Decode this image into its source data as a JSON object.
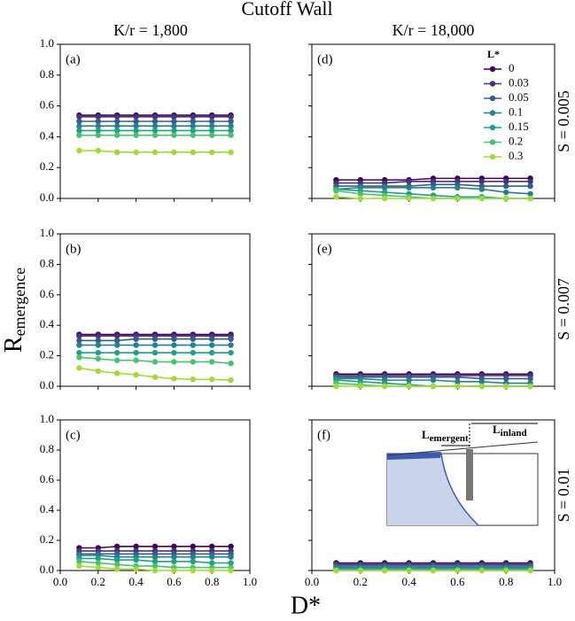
{
  "figure": {
    "title": "Cutoff Wall",
    "column_titles": [
      "K/r = 1,800",
      "K/r = 18,000"
    ],
    "row_labels": [
      "S = 0.005",
      "S = 0.007",
      "S = 0.01"
    ],
    "ylabel": {
      "main": "R",
      "sub": "emergence"
    },
    "xlabel": "D*",
    "legend_title": "L*",
    "inset": {
      "left": {
        "main": "L",
        "sub": "emergent"
      },
      "right": {
        "main": "L",
        "sub": "inland"
      }
    }
  },
  "chart_data": [
    {
      "type": "line",
      "title": "(a)",
      "x": [
        0.1,
        0.2,
        0.3,
        0.4,
        0.5,
        0.6,
        0.7,
        0.8,
        0.9
      ],
      "xlim": [
        0,
        1
      ],
      "ylim": [
        0,
        1
      ],
      "xticks": [
        {
          "value": 0,
          "label": "0.0"
        },
        {
          "value": 0.2,
          "label": "0.2"
        },
        {
          "value": 0.4,
          "label": "0.4"
        },
        {
          "value": 0.6,
          "label": "0.6"
        },
        {
          "value": 0.8,
          "label": "0.8"
        },
        {
          "value": 1,
          "label": "1.0"
        }
      ],
      "yticks": [
        {
          "value": 0,
          "label": "0.0"
        },
        {
          "value": 0.2,
          "label": "0.2"
        },
        {
          "value": 0.4,
          "label": "0.4"
        },
        {
          "value": 0.6,
          "label": "0.6"
        },
        {
          "value": 0.8,
          "label": "0.8"
        },
        {
          "value": 1,
          "label": "1.0"
        }
      ],
      "xticklabels": false,
      "yticklabels": true,
      "series": [
        {
          "name": "0",
          "color": "#440154",
          "values": [
            0.54,
            0.54,
            0.54,
            0.54,
            0.54,
            0.54,
            0.54,
            0.54,
            0.54
          ]
        },
        {
          "name": "0.03",
          "color": "#46327e",
          "values": [
            0.53,
            0.53,
            0.53,
            0.53,
            0.53,
            0.53,
            0.53,
            0.53,
            0.53
          ]
        },
        {
          "name": "0.05",
          "color": "#365c8d",
          "values": [
            0.5,
            0.5,
            0.5,
            0.5,
            0.5,
            0.5,
            0.5,
            0.5,
            0.5
          ]
        },
        {
          "name": "0.1",
          "color": "#277f8e",
          "values": [
            0.47,
            0.47,
            0.47,
            0.47,
            0.47,
            0.47,
            0.47,
            0.47,
            0.47
          ]
        },
        {
          "name": "0.15",
          "color": "#1fa187",
          "values": [
            0.44,
            0.44,
            0.44,
            0.44,
            0.44,
            0.44,
            0.44,
            0.44,
            0.44
          ]
        },
        {
          "name": "0.2",
          "color": "#4ac16d",
          "values": [
            0.41,
            0.41,
            0.41,
            0.41,
            0.41,
            0.41,
            0.41,
            0.41,
            0.41
          ]
        },
        {
          "name": "0.3",
          "color": "#a0da39",
          "values": [
            0.31,
            0.31,
            0.3,
            0.3,
            0.3,
            0.3,
            0.3,
            0.3,
            0.3
          ]
        }
      ]
    },
    {
      "type": "line",
      "title": "(d)",
      "x": [
        0.1,
        0.2,
        0.3,
        0.4,
        0.5,
        0.6,
        0.7,
        0.8,
        0.9
      ],
      "xlim": [
        0,
        1
      ],
      "ylim": [
        0,
        1
      ],
      "xticks": [
        0,
        0.2,
        0.4,
        0.6,
        0.8,
        1
      ],
      "yticks": [
        0,
        0.2,
        0.4,
        0.6,
        0.8,
        1
      ],
      "xticklabels": false,
      "yticklabels": false,
      "legend": "upper right",
      "series": [
        {
          "name": "0",
          "color": "#440154",
          "values": [
            0.12,
            0.12,
            0.12,
            0.12,
            0.13,
            0.13,
            0.13,
            0.13,
            0.13
          ]
        },
        {
          "name": "0.03",
          "color": "#46327e",
          "values": [
            0.1,
            0.1,
            0.1,
            0.11,
            0.11,
            0.11,
            0.11,
            0.11,
            0.11
          ]
        },
        {
          "name": "0.05",
          "color": "#365c8d",
          "values": [
            0.08,
            0.08,
            0.08,
            0.08,
            0.09,
            0.09,
            0.08,
            0.08,
            0.08
          ]
        },
        {
          "name": "0.1",
          "color": "#277f8e",
          "values": [
            0.06,
            0.07,
            0.07,
            0.07,
            0.07,
            0.07,
            0.06,
            0.04,
            0.03
          ]
        },
        {
          "name": "0.15",
          "color": "#1fa187",
          "values": [
            0.06,
            0.05,
            0.04,
            0.03,
            0.02,
            0.01,
            0.01,
            0,
            0
          ]
        },
        {
          "name": "0.2",
          "color": "#4ac16d",
          "values": [
            0.05,
            0.03,
            0.02,
            0.01,
            0,
            0,
            0,
            0,
            0
          ]
        },
        {
          "name": "0.3",
          "color": "#a0da39",
          "values": [
            0.01,
            0,
            0,
            0,
            0,
            0,
            0,
            0,
            0
          ]
        }
      ]
    },
    {
      "type": "line",
      "title": "(b)",
      "x": [
        0.1,
        0.2,
        0.3,
        0.4,
        0.5,
        0.6,
        0.7,
        0.8,
        0.9
      ],
      "xlim": [
        0,
        1
      ],
      "ylim": [
        0,
        1
      ],
      "xticks": [
        0,
        0.2,
        0.4,
        0.6,
        0.8,
        1
      ],
      "yticks": [
        {
          "value": 0,
          "label": "0.0"
        },
        {
          "value": 0.2,
          "label": "0.2"
        },
        {
          "value": 0.4,
          "label": "0.4"
        },
        {
          "value": 0.6,
          "label": "0.6"
        },
        {
          "value": 0.8,
          "label": "0.8"
        },
        {
          "value": 1,
          "label": "1.0"
        }
      ],
      "xticklabels": false,
      "yticklabels": true,
      "series": [
        {
          "name": "0",
          "color": "#440154",
          "values": [
            0.34,
            0.34,
            0.34,
            0.34,
            0.34,
            0.34,
            0.34,
            0.34,
            0.34
          ]
        },
        {
          "name": "0.03",
          "color": "#46327e",
          "values": [
            0.33,
            0.33,
            0.33,
            0.33,
            0.33,
            0.33,
            0.33,
            0.33,
            0.33
          ]
        },
        {
          "name": "0.05",
          "color": "#365c8d",
          "values": [
            0.3,
            0.3,
            0.3,
            0.31,
            0.31,
            0.31,
            0.31,
            0.31,
            0.31
          ]
        },
        {
          "name": "0.1",
          "color": "#277f8e",
          "values": [
            0.27,
            0.27,
            0.27,
            0.27,
            0.27,
            0.27,
            0.27,
            0.27,
            0.27
          ]
        },
        {
          "name": "0.15",
          "color": "#1fa187",
          "values": [
            0.22,
            0.22,
            0.22,
            0.22,
            0.22,
            0.22,
            0.22,
            0.22,
            0.22
          ]
        },
        {
          "name": "0.2",
          "color": "#4ac16d",
          "values": [
            0.19,
            0.18,
            0.17,
            0.17,
            0.16,
            0.16,
            0.16,
            0.16,
            0.15
          ]
        },
        {
          "name": "0.3",
          "color": "#a0da39",
          "values": [
            0.12,
            0.1,
            0.085,
            0.075,
            0.06,
            0.05,
            0.045,
            0.045,
            0.04
          ]
        }
      ]
    },
    {
      "type": "line",
      "title": "(e)",
      "x": [
        0.1,
        0.2,
        0.3,
        0.4,
        0.5,
        0.6,
        0.7,
        0.8,
        0.9
      ],
      "xlim": [
        0,
        1
      ],
      "ylim": [
        0,
        1
      ],
      "xticks": [
        0,
        0.2,
        0.4,
        0.6,
        0.8,
        1
      ],
      "yticks": [
        0,
        0.2,
        0.4,
        0.6,
        0.8,
        1
      ],
      "xticklabels": false,
      "yticklabels": false,
      "series": [
        {
          "name": "0",
          "color": "#440154",
          "values": [
            0.08,
            0.08,
            0.08,
            0.08,
            0.08,
            0.08,
            0.08,
            0.08,
            0.08
          ]
        },
        {
          "name": "0.03",
          "color": "#46327e",
          "values": [
            0.07,
            0.07,
            0.07,
            0.07,
            0.07,
            0.07,
            0.07,
            0.07,
            0.07
          ]
        },
        {
          "name": "0.05",
          "color": "#365c8d",
          "values": [
            0.06,
            0.06,
            0.06,
            0.06,
            0.06,
            0.06,
            0.05,
            0.05,
            0.05
          ]
        },
        {
          "name": "0.1",
          "color": "#277f8e",
          "values": [
            0.05,
            0.05,
            0.04,
            0.04,
            0.04,
            0.03,
            0.03,
            0.02,
            0.02
          ]
        },
        {
          "name": "0.15",
          "color": "#1fa187",
          "values": [
            0.04,
            0.03,
            0.02,
            0.01,
            0,
            0,
            0,
            0,
            0
          ]
        },
        {
          "name": "0.2",
          "color": "#4ac16d",
          "values": [
            0.02,
            0.01,
            0,
            0,
            0,
            0,
            0,
            0,
            0
          ]
        },
        {
          "name": "0.3",
          "color": "#a0da39",
          "values": [
            0,
            0,
            0,
            0,
            0,
            0,
            0,
            0,
            0
          ]
        }
      ]
    },
    {
      "type": "line",
      "title": "(c)",
      "x": [
        0.1,
        0.2,
        0.3,
        0.4,
        0.5,
        0.6,
        0.7,
        0.8,
        0.9
      ],
      "xlim": [
        0,
        1
      ],
      "ylim": [
        0,
        1
      ],
      "xticks": [
        {
          "value": 0,
          "label": "0.0"
        },
        {
          "value": 0.2,
          "label": "0.2"
        },
        {
          "value": 0.4,
          "label": "0.4"
        },
        {
          "value": 0.6,
          "label": "0.6"
        },
        {
          "value": 0.8,
          "label": "0.8"
        },
        {
          "value": 1,
          "label": "1.0"
        }
      ],
      "yticks": [
        {
          "value": 0,
          "label": "0.0"
        },
        {
          "value": 0.2,
          "label": "0.2"
        },
        {
          "value": 0.4,
          "label": "0.4"
        },
        {
          "value": 0.6,
          "label": "0.6"
        },
        {
          "value": 0.8,
          "label": "0.8"
        },
        {
          "value": 1,
          "label": "1.0"
        }
      ],
      "xticklabels": true,
      "yticklabels": true,
      "series": [
        {
          "name": "0",
          "color": "#440154",
          "values": [
            0.15,
            0.15,
            0.16,
            0.16,
            0.16,
            0.16,
            0.16,
            0.16,
            0.16
          ]
        },
        {
          "name": "0.03",
          "color": "#46327e",
          "values": [
            0.13,
            0.13,
            0.13,
            0.13,
            0.13,
            0.13,
            0.13,
            0.13,
            0.13
          ]
        },
        {
          "name": "0.05",
          "color": "#365c8d",
          "values": [
            0.11,
            0.11,
            0.11,
            0.11,
            0.11,
            0.11,
            0.11,
            0.11,
            0.11
          ]
        },
        {
          "name": "0.1",
          "color": "#277f8e",
          "values": [
            0.1,
            0.1,
            0.09,
            0.09,
            0.09,
            0.09,
            0.09,
            0.09,
            0.09
          ]
        },
        {
          "name": "0.15",
          "color": "#1fa187",
          "values": [
            0.08,
            0.08,
            0.07,
            0.07,
            0.06,
            0.06,
            0.06,
            0.05,
            0.05
          ]
        },
        {
          "name": "0.2",
          "color": "#4ac16d",
          "values": [
            0.06,
            0.05,
            0.04,
            0.03,
            0.03,
            0.02,
            0.02,
            0.02,
            0.02
          ]
        },
        {
          "name": "0.3",
          "color": "#a0da39",
          "values": [
            0.03,
            0.02,
            0.01,
            0.01,
            0,
            0,
            0,
            0,
            0
          ]
        }
      ]
    },
    {
      "type": "line",
      "title": "(f)",
      "x": [
        0.1,
        0.2,
        0.3,
        0.4,
        0.5,
        0.6,
        0.7,
        0.8,
        0.9
      ],
      "xlim": [
        0,
        1
      ],
      "ylim": [
        0,
        1
      ],
      "xticks": [
        {
          "value": 0,
          "label": "0.0"
        },
        {
          "value": 0.2,
          "label": "0.2"
        },
        {
          "value": 0.4,
          "label": "0.4"
        },
        {
          "value": 0.6,
          "label": "0.6"
        },
        {
          "value": 0.8,
          "label": "0.8"
        },
        {
          "value": 1,
          "label": "1.0"
        }
      ],
      "yticks": [
        0,
        0.2,
        0.4,
        0.6,
        0.8,
        1
      ],
      "xticklabels": true,
      "yticklabels": false,
      "series": [
        {
          "name": "0",
          "color": "#440154",
          "values": [
            0.05,
            0.05,
            0.05,
            0.05,
            0.05,
            0.05,
            0.05,
            0.05,
            0.05
          ]
        },
        {
          "name": "0.03",
          "color": "#46327e",
          "values": [
            0.04,
            0.04,
            0.04,
            0.04,
            0.04,
            0.04,
            0.04,
            0.04,
            0.04
          ]
        },
        {
          "name": "0.05",
          "color": "#365c8d",
          "values": [
            0.03,
            0.03,
            0.03,
            0.03,
            0.03,
            0.03,
            0.03,
            0.03,
            0.03
          ]
        },
        {
          "name": "0.1",
          "color": "#277f8e",
          "values": [
            0.02,
            0.02,
            0.02,
            0.02,
            0.02,
            0.02,
            0.02,
            0.02,
            0.02
          ]
        },
        {
          "name": "0.15",
          "color": "#1fa187",
          "values": [
            0.01,
            0.01,
            0.01,
            0.01,
            0.01,
            0.01,
            0.01,
            0.01,
            0.01
          ]
        },
        {
          "name": "0.2",
          "color": "#4ac16d",
          "values": [
            0,
            0,
            0,
            0,
            0,
            0,
            0,
            0,
            0
          ]
        },
        {
          "name": "0.3",
          "color": "#a0da39",
          "values": [
            0,
            0,
            0,
            0,
            0,
            0,
            0,
            0,
            0
          ]
        }
      ]
    }
  ]
}
